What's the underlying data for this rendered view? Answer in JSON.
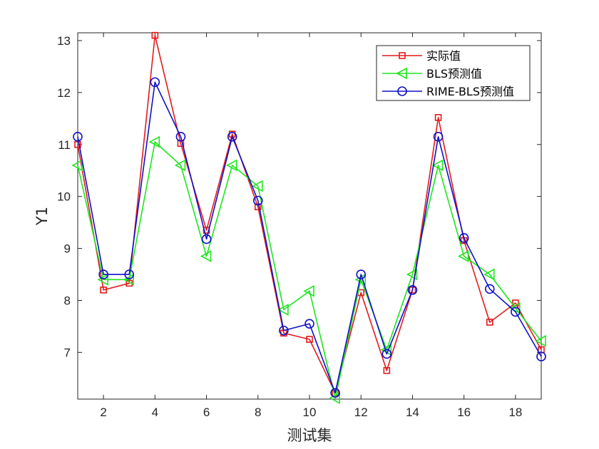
{
  "chart_data": {
    "type": "line",
    "title": "",
    "xlabel": "测试集",
    "ylabel": "Y1",
    "xlim": [
      1,
      19
    ],
    "ylim": [
      6.1,
      13.15
    ],
    "xticks": [
      2,
      4,
      6,
      8,
      10,
      12,
      14,
      16,
      18
    ],
    "yticks": [
      7,
      8,
      9,
      10,
      11,
      12,
      13
    ],
    "grid": false,
    "legend_position": "top-right",
    "x": [
      1,
      2,
      3,
      4,
      5,
      6,
      7,
      8,
      9,
      10,
      11,
      12,
      13,
      14,
      15,
      16,
      17,
      18,
      19
    ],
    "series": [
      {
        "name": "实际值",
        "color": "#e41a1c",
        "marker": "square",
        "values": [
          11.0,
          8.2,
          8.33,
          13.1,
          11.02,
          9.35,
          11.2,
          9.8,
          7.37,
          7.25,
          6.22,
          8.15,
          6.65,
          8.2,
          11.52,
          9.15,
          7.58,
          7.95,
          7.05
        ]
      },
      {
        "name": "BLS预测值",
        "color": "#1ee61e",
        "marker": "triangle-left",
        "values": [
          10.6,
          8.4,
          8.4,
          11.05,
          10.6,
          8.85,
          10.6,
          10.2,
          7.82,
          8.18,
          6.12,
          8.4,
          7.05,
          8.5,
          10.6,
          8.85,
          8.5,
          7.85,
          7.22
        ]
      },
      {
        "name": "RIME-BLS预测值",
        "color": "#1010c8",
        "marker": "circle",
        "values": [
          11.15,
          8.5,
          8.5,
          12.2,
          11.15,
          9.18,
          11.15,
          9.92,
          7.42,
          7.55,
          6.22,
          8.5,
          6.97,
          8.2,
          11.15,
          9.2,
          8.22,
          7.78,
          6.92
        ]
      }
    ]
  }
}
